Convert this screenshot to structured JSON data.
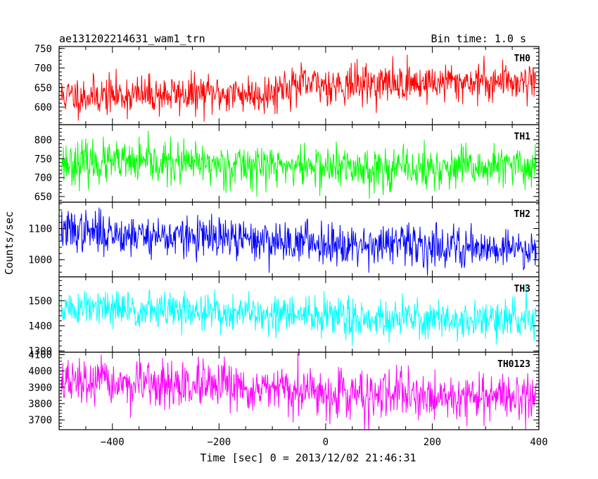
{
  "chart_data": {
    "type": "line",
    "title": "ae131202214631_wam1_trn",
    "subtitle": "Bin time: 1.0 s",
    "xlabel": "Time [sec] 0 = 2013/12/02 21:46:31",
    "ylabel": "Counts/sec",
    "x_range": [
      -500,
      400
    ],
    "x_ticks": [
      -400,
      -200,
      0,
      200,
      400
    ],
    "x_tick_labels": [
      "−400",
      "−200",
      "0",
      "200",
      "400"
    ],
    "bin_seconds": 1.0,
    "series": [
      {
        "name": "TH0",
        "color": "#ff0000",
        "ylim": [
          555,
          755
        ],
        "y_ticks": [
          600,
          650,
          700,
          750
        ],
        "y_tick_labels": [
          "600",
          "650",
          "700",
          "750"
        ],
        "trend": [
          [
            -500,
            628
          ],
          [
            -300,
            632
          ],
          [
            -100,
            635
          ],
          [
            -80,
            655
          ],
          [
            100,
            660
          ],
          [
            400,
            668
          ]
        ],
        "noise_sd": 25,
        "seed": 11
      },
      {
        "name": "TH1",
        "color": "#00ff00",
        "ylim": [
          635,
          840
        ],
        "y_ticks": [
          650,
          700,
          750,
          800
        ],
        "y_tick_labels": [
          "650",
          "700",
          "750",
          "800"
        ],
        "trend": [
          [
            -500,
            740
          ],
          [
            -200,
            735
          ],
          [
            0,
            728
          ],
          [
            200,
            722
          ],
          [
            400,
            730
          ]
        ],
        "noise_sd": 28,
        "seed": 23
      },
      {
        "name": "TH2",
        "color": "#0000ff",
        "ylim": [
          945,
          1185
        ],
        "y_ticks": [
          1000,
          1100
        ],
        "y_tick_labels": [
          "1000",
          "1100"
        ],
        "trend": [
          [
            -500,
            1095
          ],
          [
            -300,
            1075
          ],
          [
            -100,
            1060
          ],
          [
            100,
            1050
          ],
          [
            400,
            1035
          ]
        ],
        "noise_sd": 33,
        "seed": 37
      },
      {
        "name": "TH3",
        "color": "#00ffff",
        "ylim": [
          1295,
          1595
        ],
        "y_ticks": [
          1300,
          1400,
          1500
        ],
        "y_tick_labels": [
          "1300",
          "1400",
          "1500"
        ],
        "trend": [
          [
            -500,
            1470
          ],
          [
            -300,
            1460
          ],
          [
            -100,
            1445
          ],
          [
            100,
            1430
          ],
          [
            400,
            1420
          ]
        ],
        "noise_sd": 38,
        "seed": 51
      },
      {
        "name": "TH0123",
        "color": "#ff00ff",
        "ylim": [
          3640,
          4115
        ],
        "y_ticks": [
          3700,
          3800,
          3900,
          4000,
          4100
        ],
        "y_tick_labels": [
          "3700",
          "3800",
          "3900",
          "4000",
          "4100"
        ],
        "trend": [
          [
            -500,
            3930
          ],
          [
            -300,
            3910
          ],
          [
            -100,
            3880
          ],
          [
            100,
            3850
          ],
          [
            400,
            3840
          ]
        ],
        "noise_sd": 70,
        "seed": 67
      }
    ]
  }
}
